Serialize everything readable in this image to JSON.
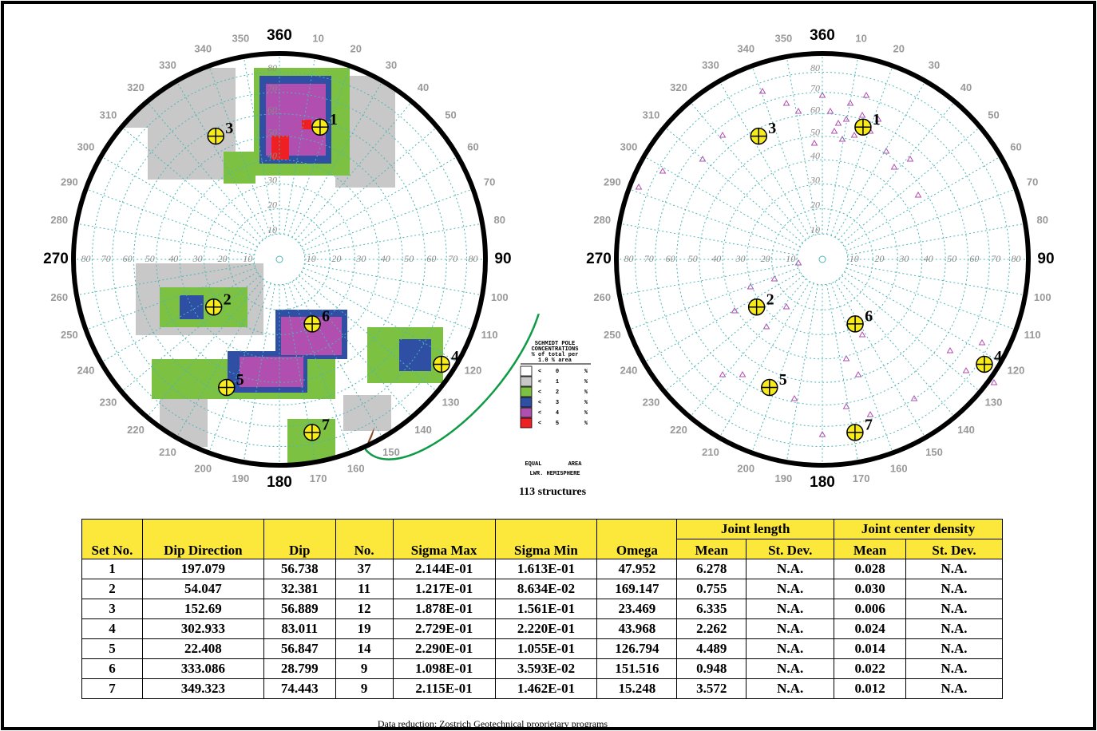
{
  "nets": {
    "azimuth_labels": [
      360,
      10,
      20,
      30,
      40,
      50,
      60,
      70,
      80,
      90,
      100,
      110,
      120,
      130,
      140,
      150,
      160,
      170,
      180,
      190,
      200,
      210,
      220,
      230,
      240,
      250,
      260,
      270,
      280,
      290,
      300,
      310,
      320,
      330,
      340,
      350
    ],
    "dip_labels": [
      10,
      20,
      30,
      40,
      50,
      60,
      70,
      80
    ]
  },
  "legend": {
    "title": [
      "SCHMIDT POLE",
      "CONCENTRATIONS",
      "% of total per",
      "1.0 % area"
    ],
    "less": "<",
    "unit": "%",
    "levels": [
      0,
      1,
      2,
      3,
      4,
      5
    ],
    "colors": [
      "#ffffff",
      "#c8c8c8",
      "#7cc142",
      "#2e4fa3",
      "#b04fb0",
      "#ee2024"
    ],
    "projection": [
      "EQUAL",
      "AREA"
    ],
    "hemisphere": "LWR. HEMISPHERE",
    "count": "113 structures"
  },
  "table": {
    "group_headers": [
      "Joint length",
      "Joint center density"
    ],
    "headers": [
      "Set No.",
      "Dip Direction",
      "Dip",
      "No.",
      "Sigma Max",
      "Sigma Min",
      "Omega",
      "Mean",
      "St. Dev.",
      "Mean",
      "St. Dev."
    ],
    "rows": [
      [
        "1",
        "197.079",
        "56.738",
        "37",
        "2.144E-01",
        "1.613E-01",
        "47.952",
        "6.278",
        "N.A.",
        "0.028",
        "N.A."
      ],
      [
        "2",
        "54.047",
        "32.381",
        "11",
        "1.217E-01",
        "8.634E-02",
        "169.147",
        "0.755",
        "N.A.",
        "0.030",
        "N.A."
      ],
      [
        "3",
        "152.69",
        "56.889",
        "12",
        "1.878E-01",
        "1.561E-01",
        "23.469",
        "6.335",
        "N.A.",
        "0.006",
        "N.A."
      ],
      [
        "4",
        "302.933",
        "83.011",
        "19",
        "2.729E-01",
        "2.220E-01",
        "43.968",
        "2.262",
        "N.A.",
        "0.024",
        "N.A."
      ],
      [
        "5",
        "22.408",
        "56.847",
        "14",
        "2.290E-01",
        "1.055E-01",
        "126.794",
        "4.489",
        "N.A.",
        "0.014",
        "N.A."
      ],
      [
        "6",
        "333.086",
        "28.799",
        "9",
        "1.098E-01",
        "3.593E-02",
        "151.516",
        "0.948",
        "N.A.",
        "0.022",
        "N.A."
      ],
      [
        "7",
        "349.323",
        "74.443",
        "9",
        "2.115E-01",
        "1.462E-01",
        "15.248",
        "3.572",
        "N.A.",
        "0.012",
        "N.A."
      ]
    ]
  },
  "footer": "Data reduction: Zostrich Geotechnical proprietary programs"
}
